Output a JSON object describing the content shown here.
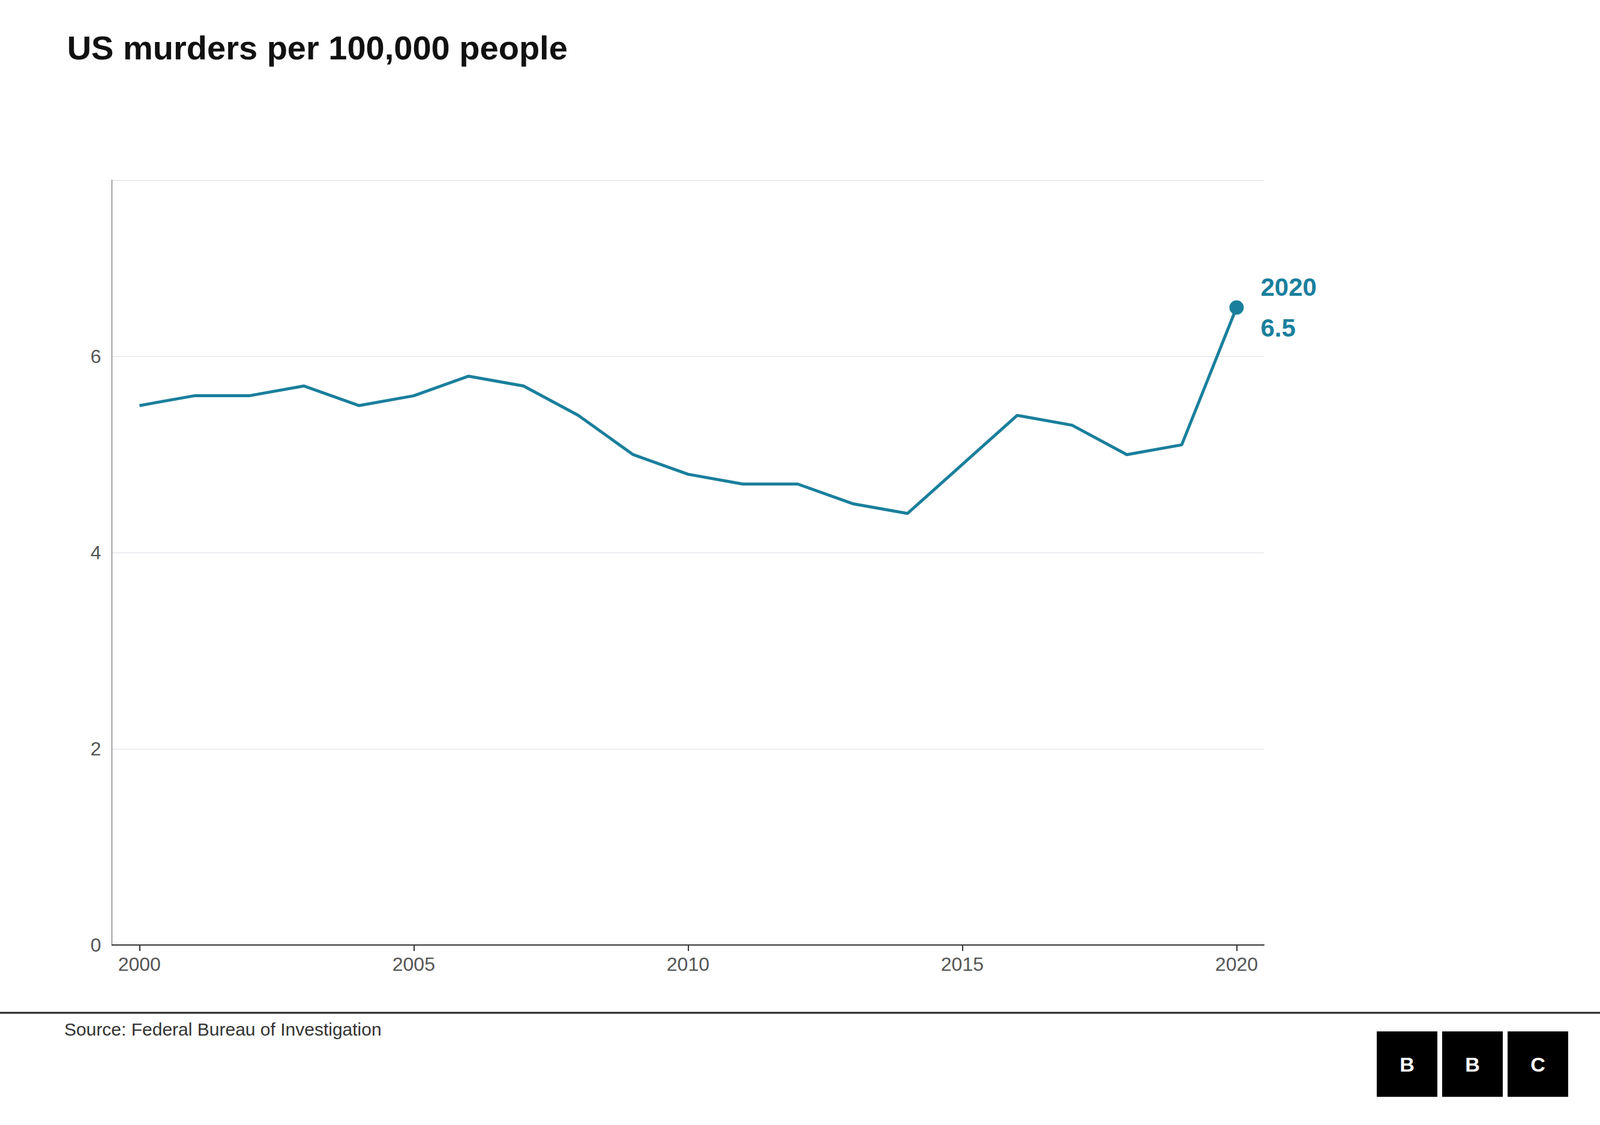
{
  "chart_data": {
    "type": "line",
    "title": "US murders per 100,000 people",
    "x": [
      2000,
      2001,
      2002,
      2003,
      2004,
      2005,
      2006,
      2007,
      2008,
      2009,
      2010,
      2011,
      2012,
      2013,
      2014,
      2015,
      2016,
      2017,
      2018,
      2019,
      2020
    ],
    "values": [
      5.5,
      5.6,
      5.6,
      5.7,
      5.5,
      5.6,
      5.8,
      5.7,
      5.4,
      5.0,
      4.8,
      4.7,
      4.7,
      4.5,
      4.4,
      4.9,
      5.4,
      5.3,
      5.0,
      5.1,
      6.5
    ],
    "color": "#1a7f9c",
    "xlim": [
      1999.5,
      2020.5
    ],
    "xticks": [
      2000,
      2005,
      2010,
      2015,
      2020
    ],
    "ylim": [
      0,
      7.8
    ],
    "yticks": [
      0,
      2,
      4,
      6
    ],
    "grid": true,
    "annotations": [
      {
        "text": "2020",
        "x": 2020,
        "y": 6.5
      },
      {
        "text": "6.5",
        "x": 2020,
        "y": 6.5
      }
    ],
    "source": "Source: Federal Bureau of Investigation",
    "logo": [
      "B",
      "B",
      "C"
    ]
  }
}
